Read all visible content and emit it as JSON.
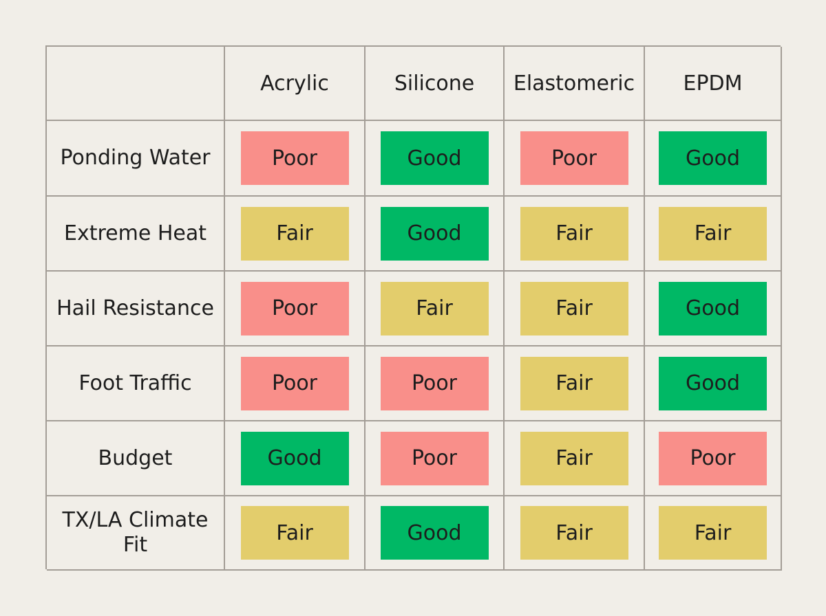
{
  "chart_data": {
    "type": "table",
    "columns": [
      "",
      "Acrylic",
      "Silicone",
      "Elastomeric",
      "EPDM"
    ],
    "rows": [
      {
        "label": "Ponding Water",
        "values": [
          "Poor",
          "Good",
          "Poor",
          "Good"
        ]
      },
      {
        "label": "Extreme Heat",
        "values": [
          "Fair",
          "Good",
          "Fair",
          "Fair"
        ]
      },
      {
        "label": "Hail Resistance",
        "values": [
          "Poor",
          "Fair",
          "Fair",
          "Good"
        ]
      },
      {
        "label": "Foot Traffic",
        "values": [
          "Poor",
          "Poor",
          "Fair",
          "Good"
        ]
      },
      {
        "label": "Budget",
        "values": [
          "Good",
          "Poor",
          "Fair",
          "Poor"
        ]
      },
      {
        "label": "TX/LA Climate Fit",
        "values": [
          "Fair",
          "Good",
          "Fair",
          "Fair"
        ]
      }
    ],
    "rating_colors": {
      "Good": "#00b865",
      "Fair": "#e3cd6c",
      "Poor": "#f98f8a"
    },
    "background": "#f1eee8",
    "grid_color": "#a39d96"
  }
}
